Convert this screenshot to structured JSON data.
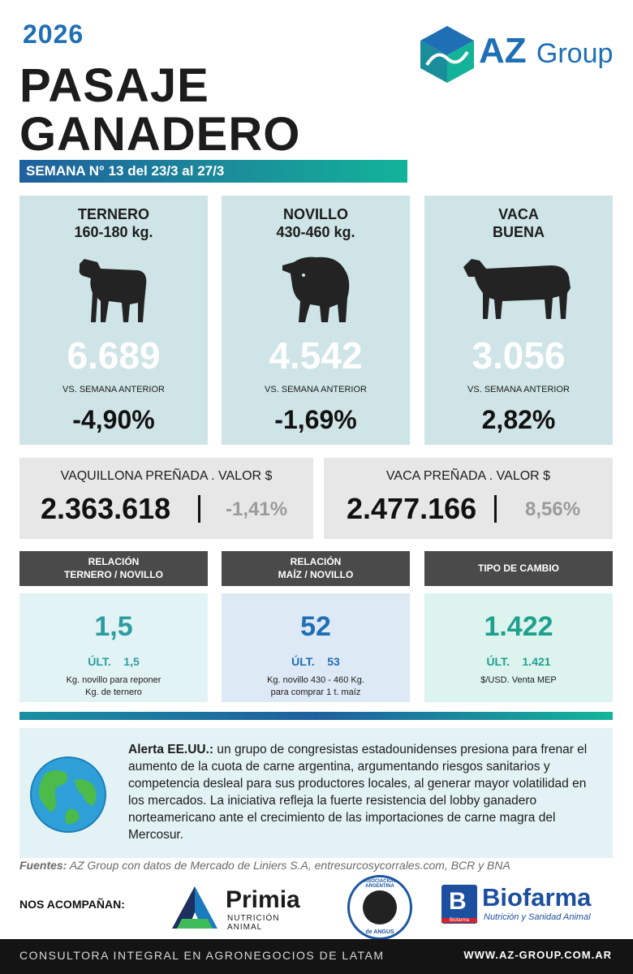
{
  "header": {
    "year": "2026",
    "title_line1": "PASAJE",
    "title_line2": "GANADERO",
    "week": "SEMANA N° 13 del 23/3 al 27/3"
  },
  "logo": {
    "brand": "AZ",
    "brand_suffix": "Group"
  },
  "cards": [
    {
      "category_line1": "TERNERO",
      "category_line2": "160-180 kg.",
      "animal_icon": "calf-icon",
      "price": "6.689",
      "vs_label": "VS. SEMANA ANTERIOR",
      "change": "-4,90%"
    },
    {
      "category_line1": "NOVILLO",
      "category_line2": "430-460 kg.",
      "animal_icon": "steer-icon",
      "price": "4.542",
      "vs_label": "VS. SEMANA ANTERIOR",
      "change": "-1,69%"
    },
    {
      "category_line1": "VACA",
      "category_line2": "BUENA",
      "animal_icon": "cow-icon",
      "price": "3.056",
      "vs_label": "VS. SEMANA ANTERIOR",
      "change": "2,82%"
    }
  ],
  "pregnant": [
    {
      "label": "VAQUILLONA PREÑADA . VALOR $",
      "value": "2.363.618",
      "change": "-1,41%"
    },
    {
      "label": "VACA PREÑADA . VALOR $",
      "value": "2.477.166",
      "change": "8,56%"
    }
  ],
  "relations": [
    {
      "head_line1": "RELACIÓN",
      "head_line2": "TERNERO / NOVILLO",
      "value": "1,5",
      "last_label": "ÚLT.",
      "last_value": "1,5",
      "note_line1": "Kg. novillo para reponer",
      "note_line2": "Kg. de ternero",
      "color": "#2a9da0",
      "bg": "#e2f3f5"
    },
    {
      "head_line1": "RELACIÓN",
      "head_line2": "MAÍZ / NOVILLO",
      "value": "52",
      "last_label": "ÚLT.",
      "last_value": "53",
      "note_line1": "Kg. novillo 430 - 460 Kg.",
      "note_line2": "para comprar  1 t. maíz",
      "color": "#1f6fb5",
      "bg": "#dde9f5"
    },
    {
      "head_line1": "TIPO DE CAMBIO",
      "head_line2": "",
      "value": "1.422",
      "last_label": "ÚLT.",
      "last_value": "1.421",
      "note_line1": "$/USD. Venta MEP",
      "note_line2": "",
      "color": "#1fa08e",
      "bg": "#dcf3ee"
    }
  ],
  "alert": {
    "lead": "Alerta EE.UU.:",
    "text": " un grupo de congresistas estadounidenses presiona para frenar el aumento de la cuota de carne argentina, argumentando riesgos sanitarios y competencia desleal para sus productores locales, al generar mayor volatilidad en los mercados. La iniciativa refleja la fuerte resistencia del lobby ganadero norteamericano ante el crecimiento de las importaciones de carne magra del Mercosur."
  },
  "sources": {
    "label": "Fuentes:",
    "text": " AZ Group con datos de Mercado de Liniers S.A, entresurcosycorrales.com,  BCR y BNA"
  },
  "sponsors": {
    "label": "NOS ACOMPAÑAN:",
    "primia_name": "Primia",
    "primia_sub": "NUTRICIÓN ANIMAL",
    "angus_top": "ASOCIACION ARGENTINA",
    "angus_bottom": "de ANGUS",
    "biofarma_letter": "B",
    "biofarma_small": "Biofarma",
    "biofarma_name": "Biofarma",
    "biofarma_sub": "Nutrición y Sanidad Animal"
  },
  "footer": {
    "tagline": "CONSULTORA INTEGRAL EN AGRONEGOCIOS DE LATAM",
    "website": "WWW.AZ-GROUP.COM.AR"
  },
  "colors": {
    "accent_blue": "#1f6fb5",
    "teal": "#13b39a",
    "card_bg": "#cfe4e6",
    "dark": "#141414"
  }
}
